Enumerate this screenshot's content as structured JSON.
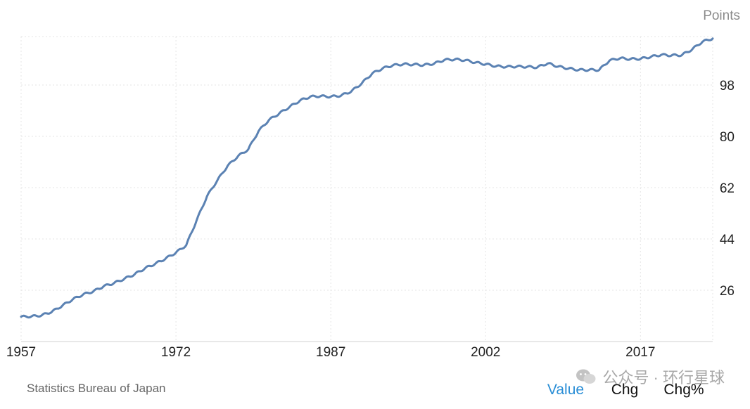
{
  "unit_label": "Points",
  "source": "Statistics Bureau of Japan",
  "tabs": [
    "Value",
    "Chg",
    "Chg%"
  ],
  "watermark": "公众号 · 环行星球",
  "colors": {
    "line": "#5b82b3",
    "grid": "#e4e4e4",
    "active_tab": "#2a8ed6"
  },
  "chart_data": {
    "type": "line",
    "xlim": [
      1957,
      2024
    ],
    "ylim": [
      8,
      115
    ],
    "x_ticks": [
      1957,
      1972,
      1987,
      2002,
      2017
    ],
    "y_ticks": [
      26,
      44,
      62,
      80,
      98
    ],
    "grid": true,
    "series": [
      {
        "points": [
          [
            1957,
            16.7
          ],
          [
            1958,
            16.8
          ],
          [
            1959,
            17.2
          ],
          [
            1960,
            18.5
          ],
          [
            1961,
            20.6
          ],
          [
            1962,
            22.8
          ],
          [
            1963,
            24.5
          ],
          [
            1964,
            25.6
          ],
          [
            1965,
            27.4
          ],
          [
            1966,
            28.5
          ],
          [
            1967,
            30.0
          ],
          [
            1968,
            31.6
          ],
          [
            1969,
            33.7
          ],
          [
            1970,
            35.3
          ],
          [
            1971,
            37.1
          ],
          [
            1972,
            39.2
          ],
          [
            1973,
            41.8
          ],
          [
            1974,
            50.5
          ],
          [
            1975,
            58.9
          ],
          [
            1976,
            64.5
          ],
          [
            1977,
            69.6
          ],
          [
            1978,
            73.0
          ],
          [
            1979,
            75.4
          ],
          [
            1980,
            81.8
          ],
          [
            1981,
            85.7
          ],
          [
            1982,
            88.0
          ],
          [
            1983,
            90.3
          ],
          [
            1984,
            92.5
          ],
          [
            1985,
            93.9
          ],
          [
            1986,
            94.1
          ],
          [
            1987,
            93.9
          ],
          [
            1988,
            94.3
          ],
          [
            1989,
            95.8
          ],
          [
            1990,
            98.6
          ],
          [
            1991,
            102.0
          ],
          [
            1992,
            103.8
          ],
          [
            1993,
            104.9
          ],
          [
            1994,
            105.3
          ],
          [
            1995,
            105.2
          ],
          [
            1996,
            105.0
          ],
          [
            1997,
            105.5
          ],
          [
            1998,
            106.8
          ],
          [
            1999,
            107.0
          ],
          [
            2000,
            106.7
          ],
          [
            2001,
            105.9
          ],
          [
            2002,
            105.3
          ],
          [
            2003,
            104.6
          ],
          [
            2004,
            104.4
          ],
          [
            2005,
            104.5
          ],
          [
            2006,
            104.4
          ],
          [
            2007,
            104.2
          ],
          [
            2008,
            105.6
          ],
          [
            2009,
            104.5
          ],
          [
            2010,
            103.8
          ],
          [
            2011,
            103.3
          ],
          [
            2012,
            103.3
          ],
          [
            2013,
            103.3
          ],
          [
            2014,
            106.6
          ],
          [
            2015,
            107.4
          ],
          [
            2016,
            107.1
          ],
          [
            2017,
            107.2
          ],
          [
            2018,
            107.9
          ],
          [
            2019,
            108.6
          ],
          [
            2020,
            108.4
          ],
          [
            2021,
            108.5
          ],
          [
            2022,
            110.5
          ],
          [
            2023,
            113.2
          ],
          [
            2024,
            114.3
          ]
        ]
      }
    ]
  }
}
